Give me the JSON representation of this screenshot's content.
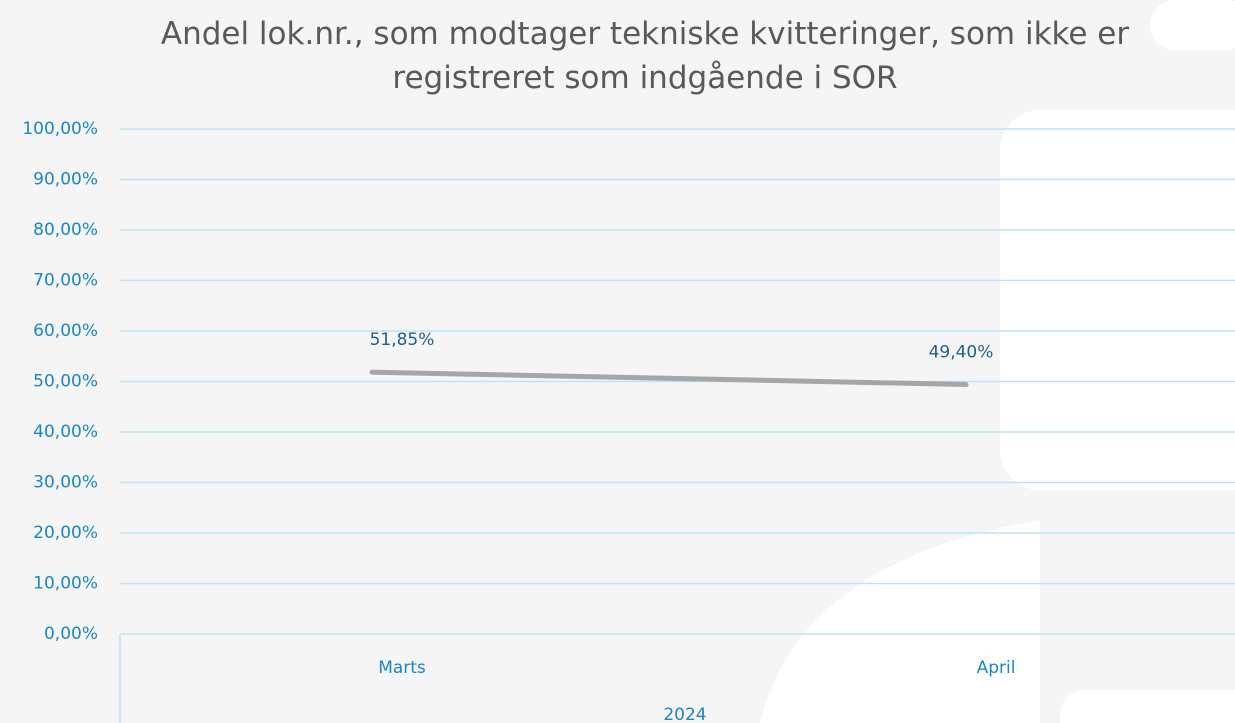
{
  "chart_data": {
    "type": "line",
    "title": "Andel lok.nr., som modtager tekniske kvitteringer, som ikke er registreret som indgående i SOR",
    "categories": [
      "Marts",
      "April"
    ],
    "group_label": "2024",
    "series": [
      {
        "color": "#a6a6a6",
        "values": [
          51.85,
          49.4
        ],
        "value_labels": [
          "51,85%",
          "49,40%"
        ]
      }
    ],
    "ylim": [
      0,
      100
    ],
    "yticks": [
      {
        "value": 0,
        "label": "0,00%"
      },
      {
        "value": 10,
        "label": "10,00%"
      },
      {
        "value": 20,
        "label": "20,00%"
      },
      {
        "value": 30,
        "label": "30,00%"
      },
      {
        "value": 40,
        "label": "40,00%"
      },
      {
        "value": 50,
        "label": "50,00%"
      },
      {
        "value": 60,
        "label": "60,00%"
      },
      {
        "value": 70,
        "label": "70,00%"
      },
      {
        "value": 80,
        "label": "80,00%"
      },
      {
        "value": 90,
        "label": "90,00%"
      },
      {
        "value": 100,
        "label": "100,00%"
      }
    ],
    "grid": true
  }
}
